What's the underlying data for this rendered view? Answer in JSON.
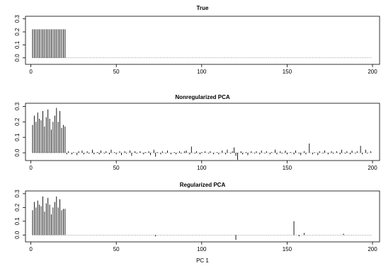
{
  "chart_data": [
    {
      "type": "bar",
      "title": "True",
      "xlabel": "",
      "ylabel": "",
      "xlim": [
        1,
        200
      ],
      "ylim": [
        -0.05,
        0.32
      ],
      "xticks": [
        0,
        50,
        100,
        150,
        200
      ],
      "yticks": [
        0.0,
        0.1,
        0.2,
        0.3
      ],
      "ytick_labels": [
        "0.0",
        "0.1",
        "0.2",
        "0.3"
      ],
      "grid": false,
      "x": [
        1,
        2,
        3,
        4,
        5,
        6,
        7,
        8,
        9,
        10,
        11,
        12,
        13,
        14,
        15,
        16,
        17,
        18,
        19,
        20
      ],
      "values": [
        0.22,
        0.22,
        0.22,
        0.22,
        0.22,
        0.22,
        0.22,
        0.22,
        0.22,
        0.22,
        0.22,
        0.22,
        0.22,
        0.22,
        0.22,
        0.22,
        0.22,
        0.22,
        0.22,
        0.22
      ]
    },
    {
      "type": "bar",
      "title": "Nonregularized PCA",
      "xlabel": "",
      "ylabel": "",
      "xlim": [
        1,
        200
      ],
      "ylim": [
        -0.05,
        0.32
      ],
      "xticks": [
        0,
        50,
        100,
        150,
        200
      ],
      "yticks": [
        0.0,
        0.1,
        0.2,
        0.3
      ],
      "ytick_labels": [
        "0.0",
        "0.1",
        "0.2",
        "0.3"
      ],
      "grid": false,
      "x": [
        1,
        2,
        3,
        4,
        5,
        6,
        7,
        8,
        9,
        10,
        11,
        12,
        13,
        14,
        15,
        16,
        17,
        18,
        19,
        20,
        21,
        22,
        23,
        24,
        25,
        26,
        27,
        28,
        29,
        30,
        31,
        32,
        33,
        34,
        35,
        36,
        37,
        38,
        39,
        40,
        41,
        42,
        43,
        44,
        45,
        46,
        47,
        48,
        49,
        50,
        51,
        52,
        53,
        54,
        55,
        56,
        57,
        58,
        59,
        60,
        61,
        62,
        63,
        64,
        65,
        66,
        67,
        68,
        69,
        70,
        71,
        72,
        73,
        74,
        75,
        76,
        77,
        78,
        79,
        80,
        81,
        82,
        83,
        84,
        85,
        86,
        87,
        88,
        89,
        90,
        91,
        92,
        93,
        94,
        95,
        96,
        97,
        98,
        99,
        100,
        101,
        102,
        103,
        104,
        105,
        106,
        107,
        108,
        109,
        110,
        111,
        112,
        113,
        114,
        115,
        116,
        117,
        118,
        119,
        120,
        121,
        122,
        123,
        124,
        125,
        126,
        127,
        128,
        129,
        130,
        131,
        132,
        133,
        134,
        135,
        136,
        137,
        138,
        139,
        140,
        141,
        142,
        143,
        144,
        145,
        146,
        147,
        148,
        149,
        150,
        151,
        152,
        153,
        154,
        155,
        156,
        157,
        158,
        159,
        160,
        161,
        162,
        163,
        164,
        165,
        166,
        167,
        168,
        169,
        170,
        171,
        172,
        173,
        174,
        175,
        176,
        177,
        178,
        179,
        180,
        181,
        182,
        183,
        184,
        185,
        186,
        187,
        188,
        189,
        190,
        191,
        192,
        193,
        194,
        195,
        196,
        197,
        198,
        199,
        200
      ],
      "values": [
        0.18,
        0.24,
        0.2,
        0.26,
        0.22,
        0.21,
        0.27,
        0.17,
        0.23,
        0.28,
        0.22,
        0.15,
        0.2,
        0.24,
        0.29,
        0.2,
        0.27,
        0.16,
        0.18,
        0.17,
        -0.01,
        0.01,
        0.0,
        -0.01,
        0.005,
        0.0,
        -0.015,
        0.01,
        0.0,
        0.015,
        -0.01,
        0.0,
        0.01,
        -0.005,
        0.0,
        0.02,
        -0.01,
        0.0,
        0.005,
        -0.01,
        0.015,
        0.0,
        -0.005,
        0.01,
        0.0,
        -0.01,
        0.02,
        0.0,
        0.005,
        -0.01,
        0.0,
        0.01,
        -0.015,
        0.0,
        0.01,
        -0.005,
        0.0,
        0.015,
        -0.02,
        0.0,
        0.01,
        -0.005,
        0.0,
        0.01,
        0.0,
        -0.01,
        0.005,
        0.0,
        0.01,
        -0.015,
        0.0,
        0.02,
        -0.025,
        0.005,
        0.0,
        -0.01,
        0.01,
        0.0,
        -0.005,
        0.015,
        0.0,
        -0.01,
        0.0,
        0.005,
        -0.01,
        0.0,
        0.01,
        -0.005,
        0.0,
        0.01,
        0.015,
        0.0,
        -0.01,
        0.04,
        0.0,
        -0.005,
        0.01,
        0.0,
        -0.01,
        0.005,
        0.0,
        0.01,
        0.0,
        -0.005,
        0.01,
        0.0,
        -0.01,
        0.0,
        0.005,
        -0.01,
        0.0,
        0.015,
        0.0,
        -0.01,
        0.02,
        0.0,
        -0.005,
        0.01,
        0.035,
        -0.02,
        -0.045,
        0.0,
        0.01,
        -0.01,
        0.0,
        0.005,
        -0.015,
        0.0,
        0.01,
        0.0,
        -0.005,
        0.01,
        0.0,
        -0.01,
        0.015,
        0.0,
        -0.005,
        0.01,
        0.0,
        -0.01,
        0.005,
        0.0,
        0.02,
        -0.01,
        0.0,
        0.01,
        -0.005,
        0.0,
        0.015,
        -0.01,
        0.0,
        0.005,
        0.0,
        -0.01,
        0.015,
        0.0,
        -0.005,
        -0.015,
        0.0,
        0.01,
        -0.01,
        0.0,
        0.06,
        0.0,
        -0.01,
        0.005,
        0.0,
        -0.015,
        0.01,
        0.0,
        -0.005,
        0.015,
        0.0,
        -0.01,
        0.0,
        0.01,
        -0.005,
        0.0,
        0.01,
        0.0,
        -0.01,
        0.02,
        0.0,
        -0.005,
        0.01,
        0.0,
        -0.01,
        0.015,
        0.0,
        -0.005,
        0.01,
        0.0,
        0.045,
        -0.01,
        0.0,
        0.02,
        -0.005,
        0.0,
        0.01,
        0.0
      ]
    },
    {
      "type": "bar",
      "title": "Regularized PCA",
      "xlabel": "PC 1",
      "ylabel": "",
      "xlim": [
        1,
        200
      ],
      "ylim": [
        -0.05,
        0.32
      ],
      "xticks": [
        0,
        50,
        100,
        150,
        200
      ],
      "yticks": [
        0.0,
        0.1,
        0.2,
        0.3
      ],
      "ytick_labels": [
        "0.0",
        "0.1",
        "0.2",
        "0.3"
      ],
      "grid": false,
      "x": [
        1,
        2,
        3,
        4,
        5,
        6,
        7,
        8,
        9,
        10,
        11,
        12,
        13,
        14,
        15,
        16,
        17,
        18,
        19,
        20,
        73,
        120,
        154,
        157,
        160,
        183
      ],
      "values": [
        0.18,
        0.24,
        0.2,
        0.25,
        0.22,
        0.21,
        0.28,
        0.17,
        0.23,
        0.27,
        0.22,
        0.15,
        0.2,
        0.24,
        0.28,
        0.2,
        0.26,
        0.18,
        0.19,
        0.19,
        -0.01,
        -0.035,
        0.1,
        -0.01,
        0.015,
        0.01
      ]
    }
  ]
}
